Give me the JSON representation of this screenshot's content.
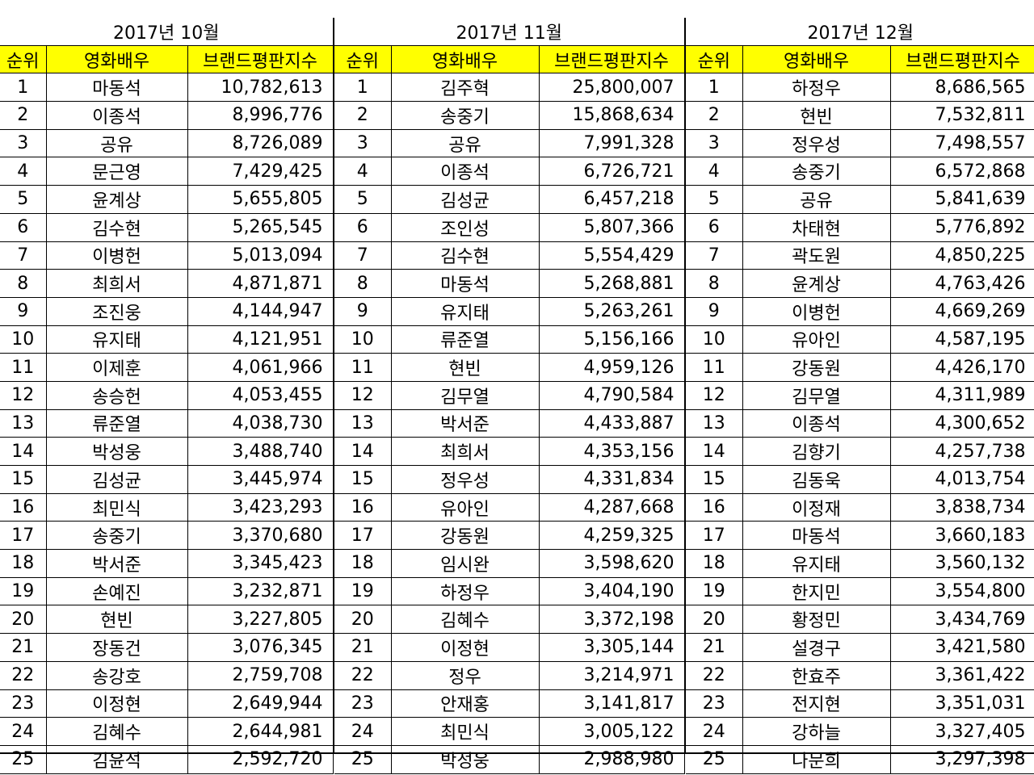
{
  "columns": {
    "rank": "순위",
    "actor": "영화배우",
    "index": "브랜드평판지수"
  },
  "months": [
    {
      "title": "2017년 10월",
      "rows": [
        {
          "rank": "1",
          "actor": "마동석",
          "index": "10,782,613"
        },
        {
          "rank": "2",
          "actor": "이종석",
          "index": "8,996,776"
        },
        {
          "rank": "3",
          "actor": "공유",
          "index": "8,726,089"
        },
        {
          "rank": "4",
          "actor": "문근영",
          "index": "7,429,425"
        },
        {
          "rank": "5",
          "actor": "윤계상",
          "index": "5,655,805"
        },
        {
          "rank": "6",
          "actor": "김수현",
          "index": "5,265,545"
        },
        {
          "rank": "7",
          "actor": "이병헌",
          "index": "5,013,094"
        },
        {
          "rank": "8",
          "actor": "최희서",
          "index": "4,871,871"
        },
        {
          "rank": "9",
          "actor": "조진웅",
          "index": "4,144,947"
        },
        {
          "rank": "10",
          "actor": "유지태",
          "index": "4,121,951"
        },
        {
          "rank": "11",
          "actor": "이제훈",
          "index": "4,061,966"
        },
        {
          "rank": "12",
          "actor": "송승헌",
          "index": "4,053,455"
        },
        {
          "rank": "13",
          "actor": "류준열",
          "index": "4,038,730"
        },
        {
          "rank": "14",
          "actor": "박성웅",
          "index": "3,488,740"
        },
        {
          "rank": "15",
          "actor": "김성균",
          "index": "3,445,974"
        },
        {
          "rank": "16",
          "actor": "최민식",
          "index": "3,423,293"
        },
        {
          "rank": "17",
          "actor": "송중기",
          "index": "3,370,680"
        },
        {
          "rank": "18",
          "actor": "박서준",
          "index": "3,345,423"
        },
        {
          "rank": "19",
          "actor": "손예진",
          "index": "3,232,871"
        },
        {
          "rank": "20",
          "actor": "현빈",
          "index": "3,227,805"
        },
        {
          "rank": "21",
          "actor": "장동건",
          "index": "3,076,345"
        },
        {
          "rank": "22",
          "actor": "송강호",
          "index": "2,759,708"
        },
        {
          "rank": "23",
          "actor": "이정현",
          "index": "2,649,944"
        },
        {
          "rank": "24",
          "actor": "김혜수",
          "index": "2,644,981"
        },
        {
          "rank": "25",
          "actor": "김윤석",
          "index": "2,592,720"
        }
      ]
    },
    {
      "title": "2017년 11월",
      "rows": [
        {
          "rank": "1",
          "actor": "김주혁",
          "index": "25,800,007"
        },
        {
          "rank": "2",
          "actor": "송중기",
          "index": "15,868,634"
        },
        {
          "rank": "3",
          "actor": "공유",
          "index": "7,991,328"
        },
        {
          "rank": "4",
          "actor": "이종석",
          "index": "6,726,721"
        },
        {
          "rank": "5",
          "actor": "김성균",
          "index": "6,457,218"
        },
        {
          "rank": "6",
          "actor": "조인성",
          "index": "5,807,366"
        },
        {
          "rank": "7",
          "actor": "김수현",
          "index": "5,554,429"
        },
        {
          "rank": "8",
          "actor": "마동석",
          "index": "5,268,881"
        },
        {
          "rank": "9",
          "actor": "유지태",
          "index": "5,263,261"
        },
        {
          "rank": "10",
          "actor": "류준열",
          "index": "5,156,166"
        },
        {
          "rank": "11",
          "actor": "현빈",
          "index": "4,959,126"
        },
        {
          "rank": "12",
          "actor": "김무열",
          "index": "4,790,584"
        },
        {
          "rank": "13",
          "actor": "박서준",
          "index": "4,433,887"
        },
        {
          "rank": "14",
          "actor": "최희서",
          "index": "4,353,156"
        },
        {
          "rank": "15",
          "actor": "정우성",
          "index": "4,331,834"
        },
        {
          "rank": "16",
          "actor": "유아인",
          "index": "4,287,668"
        },
        {
          "rank": "17",
          "actor": "강동원",
          "index": "4,259,325"
        },
        {
          "rank": "18",
          "actor": "임시완",
          "index": "3,598,620"
        },
        {
          "rank": "19",
          "actor": "하정우",
          "index": "3,404,190"
        },
        {
          "rank": "20",
          "actor": "김혜수",
          "index": "3,372,198"
        },
        {
          "rank": "21",
          "actor": "이정현",
          "index": "3,305,144"
        },
        {
          "rank": "22",
          "actor": "정우",
          "index": "3,214,971"
        },
        {
          "rank": "23",
          "actor": "안재홍",
          "index": "3,141,817"
        },
        {
          "rank": "24",
          "actor": "최민식",
          "index": "3,005,122"
        },
        {
          "rank": "25",
          "actor": "박성웅",
          "index": "2,988,980"
        }
      ]
    },
    {
      "title": "2017년 12월",
      "rows": [
        {
          "rank": "1",
          "actor": "하정우",
          "index": "8,686,565"
        },
        {
          "rank": "2",
          "actor": "현빈",
          "index": "7,532,811"
        },
        {
          "rank": "3",
          "actor": "정우성",
          "index": "7,498,557"
        },
        {
          "rank": "4",
          "actor": "송중기",
          "index": "6,572,868"
        },
        {
          "rank": "5",
          "actor": "공유",
          "index": "5,841,639"
        },
        {
          "rank": "6",
          "actor": "차태현",
          "index": "5,776,892"
        },
        {
          "rank": "7",
          "actor": "곽도원",
          "index": "4,850,225"
        },
        {
          "rank": "8",
          "actor": "윤계상",
          "index": "4,763,426"
        },
        {
          "rank": "9",
          "actor": "이병헌",
          "index": "4,669,269"
        },
        {
          "rank": "10",
          "actor": "유아인",
          "index": "4,587,195"
        },
        {
          "rank": "11",
          "actor": "강동원",
          "index": "4,426,170"
        },
        {
          "rank": "12",
          "actor": "김무열",
          "index": "4,311,989"
        },
        {
          "rank": "13",
          "actor": "이종석",
          "index": "4,300,652"
        },
        {
          "rank": "14",
          "actor": "김향기",
          "index": "4,257,738"
        },
        {
          "rank": "15",
          "actor": "김동욱",
          "index": "4,013,754"
        },
        {
          "rank": "16",
          "actor": "이정재",
          "index": "3,838,734"
        },
        {
          "rank": "17",
          "actor": "마동석",
          "index": "3,660,183"
        },
        {
          "rank": "18",
          "actor": "유지태",
          "index": "3,560,132"
        },
        {
          "rank": "19",
          "actor": "한지민",
          "index": "3,554,800"
        },
        {
          "rank": "20",
          "actor": "황정민",
          "index": "3,434,769"
        },
        {
          "rank": "21",
          "actor": "설경구",
          "index": "3,421,580"
        },
        {
          "rank": "22",
          "actor": "한효주",
          "index": "3,361,422"
        },
        {
          "rank": "23",
          "actor": "전지현",
          "index": "3,351,031"
        },
        {
          "rank": "24",
          "actor": "강하늘",
          "index": "3,327,405"
        },
        {
          "rank": "25",
          "actor": "나문희",
          "index": "3,297,398"
        }
      ]
    }
  ]
}
